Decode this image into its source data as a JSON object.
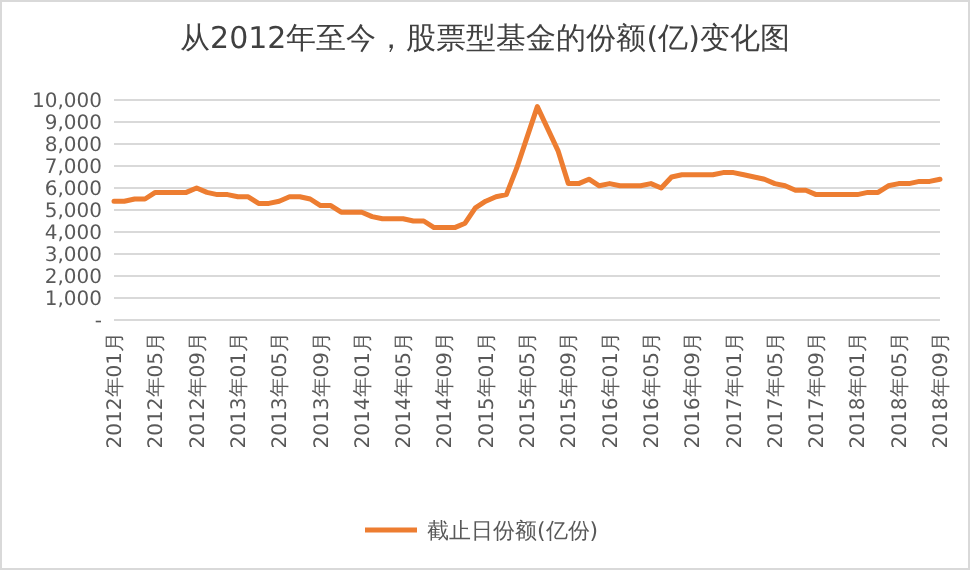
{
  "chart_data": {
    "type": "line",
    "title": "从2012年至今，股票型基金的份额(亿)变化图",
    "categories": [
      "2012年01月",
      null,
      null,
      null,
      "2012年05月",
      null,
      null,
      null,
      "2012年09月",
      null,
      null,
      null,
      "2013年01月",
      null,
      null,
      null,
      "2013年05月",
      null,
      null,
      null,
      "2013年09月",
      null,
      null,
      null,
      "2014年01月",
      null,
      null,
      null,
      "2014年05月",
      null,
      null,
      null,
      "2014年09月",
      null,
      null,
      null,
      "2015年01月",
      null,
      null,
      null,
      "2015年05月",
      null,
      null,
      null,
      "2015年09月",
      null,
      null,
      null,
      "2016年01月",
      null,
      null,
      null,
      "2016年05月",
      null,
      null,
      null,
      "2016年09月",
      null,
      null,
      null,
      "2017年01月",
      null,
      null,
      null,
      "2017年05月",
      null,
      null,
      null,
      "2017年09月",
      null,
      null,
      null,
      "2018年01月",
      null,
      null,
      null,
      "2018年05月",
      null,
      null,
      null,
      "2018年09月"
    ],
    "series": [
      {
        "name": "截止日份额(亿份)",
        "color": "#ed7d31",
        "values": [
          5400,
          5400,
          5500,
          5500,
          5800,
          5800,
          5800,
          5800,
          6000,
          5800,
          5700,
          5700,
          5600,
          5600,
          5300,
          5300,
          5400,
          5600,
          5600,
          5500,
          5200,
          5200,
          4900,
          4900,
          4900,
          4700,
          4600,
          4600,
          4600,
          4500,
          4500,
          4200,
          4200,
          4200,
          4400,
          5100,
          5400,
          5600,
          5700,
          6900,
          8300,
          9700,
          8700,
          7700,
          6200,
          6200,
          6400,
          6100,
          6200,
          6100,
          6100,
          6100,
          6200,
          6000,
          6500,
          6600,
          6600,
          6600,
          6600,
          6700,
          6700,
          6600,
          6500,
          6400,
          6200,
          6100,
          5900,
          5900,
          5700,
          5700,
          5700,
          5700,
          5700,
          5800,
          5800,
          6100,
          6200,
          6200,
          6300,
          6300,
          6400
        ]
      }
    ],
    "ylim": [
      0,
      10000
    ],
    "yticks": [
      {
        "value": 0,
        "label": "-"
      },
      {
        "value": 1000,
        "label": "1,000"
      },
      {
        "value": 2000,
        "label": "2,000"
      },
      {
        "value": 3000,
        "label": "3,000"
      },
      {
        "value": 4000,
        "label": "4,000"
      },
      {
        "value": 5000,
        "label": "5,000"
      },
      {
        "value": 6000,
        "label": "6,000"
      },
      {
        "value": 7000,
        "label": "7,000"
      },
      {
        "value": 8000,
        "label": "8,000"
      },
      {
        "value": 9000,
        "label": "9,000"
      },
      {
        "value": 10000,
        "label": "10,000"
      }
    ],
    "grid": "y",
    "legend": "bottom",
    "marker": "none",
    "line_style": "solid"
  }
}
